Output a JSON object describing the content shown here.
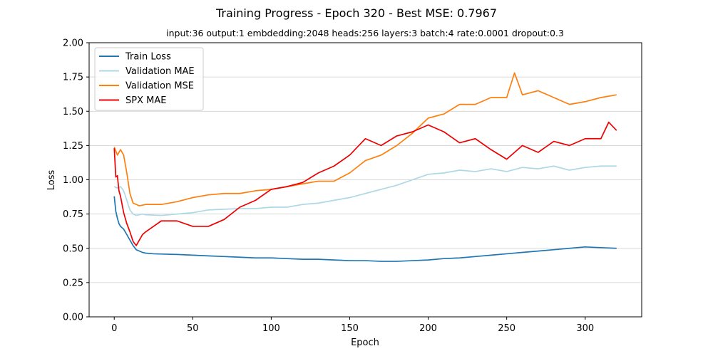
{
  "chart_data": {
    "type": "line",
    "title": "Training Progress - Epoch 320 - Best MSE: 0.7967",
    "subtitle": "input:36 output:1 embdedding:2048 heads:256 layers:3 batch:4 rate:0.0001 dropout:0.3",
    "xlabel": "Epoch",
    "ylabel": "Loss",
    "xlim": [
      -16,
      336
    ],
    "ylim": [
      0,
      2.0
    ],
    "xticks": [
      0,
      50,
      100,
      150,
      200,
      250,
      300
    ],
    "yticks": [
      0.0,
      0.25,
      0.5,
      0.75,
      1.0,
      1.25,
      1.5,
      1.75,
      2.0
    ],
    "ytick_labels": [
      "0.00",
      "0.25",
      "0.50",
      "0.75",
      "1.00",
      "1.25",
      "1.50",
      "1.75",
      "2.00"
    ],
    "grid": "horizontal",
    "legend_position": "top-left",
    "series": [
      {
        "name": "Train Loss",
        "color": "#1f77b4",
        "x": [
          0,
          1,
          2,
          3,
          4,
          5,
          6,
          8,
          10,
          12,
          14,
          16,
          18,
          20,
          25,
          30,
          40,
          50,
          60,
          70,
          80,
          90,
          100,
          110,
          120,
          130,
          140,
          150,
          160,
          170,
          180,
          190,
          200,
          210,
          220,
          230,
          240,
          250,
          260,
          270,
          280,
          290,
          300,
          310,
          320
        ],
        "values": [
          0.88,
          0.77,
          0.72,
          0.68,
          0.66,
          0.65,
          0.64,
          0.6,
          0.56,
          0.52,
          0.49,
          0.48,
          0.47,
          0.465,
          0.46,
          0.458,
          0.455,
          0.45,
          0.445,
          0.44,
          0.435,
          0.43,
          0.43,
          0.425,
          0.42,
          0.42,
          0.415,
          0.41,
          0.41,
          0.405,
          0.405,
          0.41,
          0.415,
          0.425,
          0.43,
          0.44,
          0.45,
          0.46,
          0.47,
          0.48,
          0.49,
          0.5,
          0.51,
          0.505,
          0.5
        ]
      },
      {
        "name": "Validation MAE",
        "color": "#add8e6",
        "x": [
          0,
          2,
          4,
          6,
          8,
          10,
          12,
          14,
          16,
          18,
          20,
          30,
          40,
          50,
          60,
          70,
          80,
          90,
          100,
          110,
          120,
          130,
          140,
          150,
          160,
          170,
          180,
          190,
          200,
          210,
          220,
          230,
          240,
          250,
          260,
          270,
          280,
          290,
          300,
          310,
          320
        ],
        "values": [
          0.95,
          0.94,
          0.95,
          0.92,
          0.85,
          0.78,
          0.75,
          0.74,
          0.745,
          0.75,
          0.745,
          0.74,
          0.75,
          0.76,
          0.78,
          0.785,
          0.79,
          0.79,
          0.8,
          0.8,
          0.82,
          0.83,
          0.85,
          0.87,
          0.9,
          0.93,
          0.96,
          1.0,
          1.04,
          1.05,
          1.07,
          1.06,
          1.08,
          1.06,
          1.09,
          1.08,
          1.1,
          1.07,
          1.09,
          1.1,
          1.1
        ]
      },
      {
        "name": "Validation MSE",
        "color": "#ff7f0e",
        "x": [
          0,
          2,
          4,
          6,
          8,
          10,
          12,
          14,
          16,
          20,
          30,
          40,
          50,
          60,
          70,
          80,
          90,
          100,
          110,
          120,
          130,
          140,
          150,
          160,
          170,
          180,
          190,
          200,
          210,
          220,
          230,
          240,
          250,
          255,
          260,
          270,
          280,
          290,
          300,
          310,
          320
        ],
        "values": [
          1.24,
          1.18,
          1.22,
          1.18,
          1.05,
          0.9,
          0.83,
          0.82,
          0.81,
          0.82,
          0.82,
          0.84,
          0.87,
          0.89,
          0.9,
          0.9,
          0.92,
          0.93,
          0.95,
          0.97,
          0.99,
          0.99,
          1.05,
          1.14,
          1.18,
          1.25,
          1.34,
          1.45,
          1.48,
          1.55,
          1.55,
          1.6,
          1.6,
          1.78,
          1.62,
          1.65,
          1.6,
          1.55,
          1.57,
          1.6,
          1.62
        ]
      },
      {
        "name": "SPX MAE",
        "color": "#ee0000",
        "x": [
          0,
          1,
          2,
          3,
          4,
          6,
          8,
          10,
          12,
          14,
          16,
          18,
          20,
          25,
          30,
          40,
          50,
          60,
          70,
          80,
          90,
          100,
          110,
          120,
          130,
          140,
          150,
          160,
          170,
          180,
          190,
          200,
          210,
          220,
          230,
          240,
          250,
          260,
          270,
          280,
          290,
          300,
          310,
          315,
          320
        ],
        "values": [
          1.23,
          1.02,
          1.03,
          0.92,
          0.88,
          0.76,
          0.68,
          0.62,
          0.55,
          0.52,
          0.56,
          0.6,
          0.62,
          0.66,
          0.7,
          0.7,
          0.66,
          0.66,
          0.71,
          0.8,
          0.85,
          0.93,
          0.95,
          0.98,
          1.05,
          1.1,
          1.18,
          1.3,
          1.25,
          1.32,
          1.35,
          1.4,
          1.35,
          1.27,
          1.3,
          1.22,
          1.15,
          1.25,
          1.2,
          1.28,
          1.25,
          1.3,
          1.3,
          1.42,
          1.36
        ]
      }
    ]
  }
}
